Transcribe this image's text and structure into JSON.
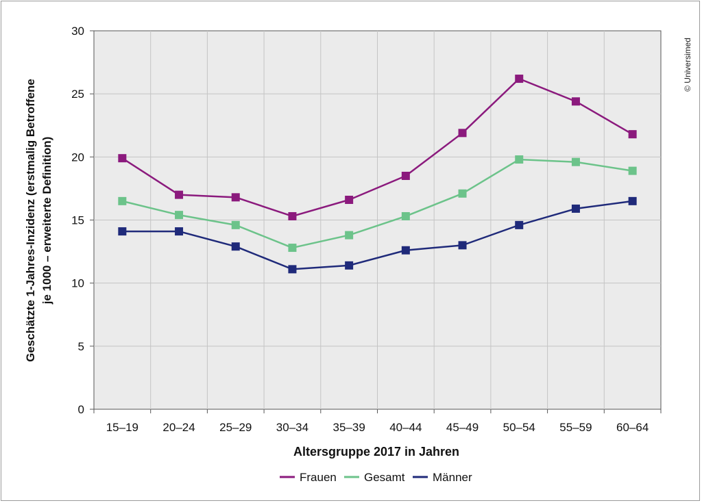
{
  "credit": "© Universimed",
  "chart_data": {
    "type": "line",
    "categories": [
      "15–19",
      "20–24",
      "25–29",
      "30–34",
      "35–39",
      "40–44",
      "45–49",
      "50–54",
      "55–59",
      "60–64"
    ],
    "series": [
      {
        "name": "Frauen",
        "color": "#8b1a7d",
        "values": [
          19.9,
          17.0,
          16.8,
          15.3,
          16.6,
          18.5,
          21.9,
          26.2,
          24.4,
          21.8
        ]
      },
      {
        "name": "Gesamt",
        "color": "#6cc38a",
        "values": [
          16.5,
          15.4,
          14.6,
          12.8,
          13.8,
          15.3,
          17.1,
          19.8,
          19.6,
          18.9
        ]
      },
      {
        "name": "Männer",
        "color": "#1f2a7a",
        "values": [
          14.1,
          14.1,
          12.9,
          11.1,
          11.4,
          12.6,
          13.0,
          14.6,
          15.9,
          16.5
        ]
      }
    ],
    "xlabel": "Altersgruppe 2017 in Jahren",
    "ylabel_line1": "Geschätzte 1-Jahres-Inzidenz (erstmalig Betroffene",
    "ylabel_line2": "je 1000 – erweiterte Definition)",
    "ylim": [
      0,
      30
    ],
    "yticks": [
      0,
      5,
      10,
      15,
      20,
      25,
      30
    ],
    "grid": true,
    "legend_position": "bottom-center"
  }
}
